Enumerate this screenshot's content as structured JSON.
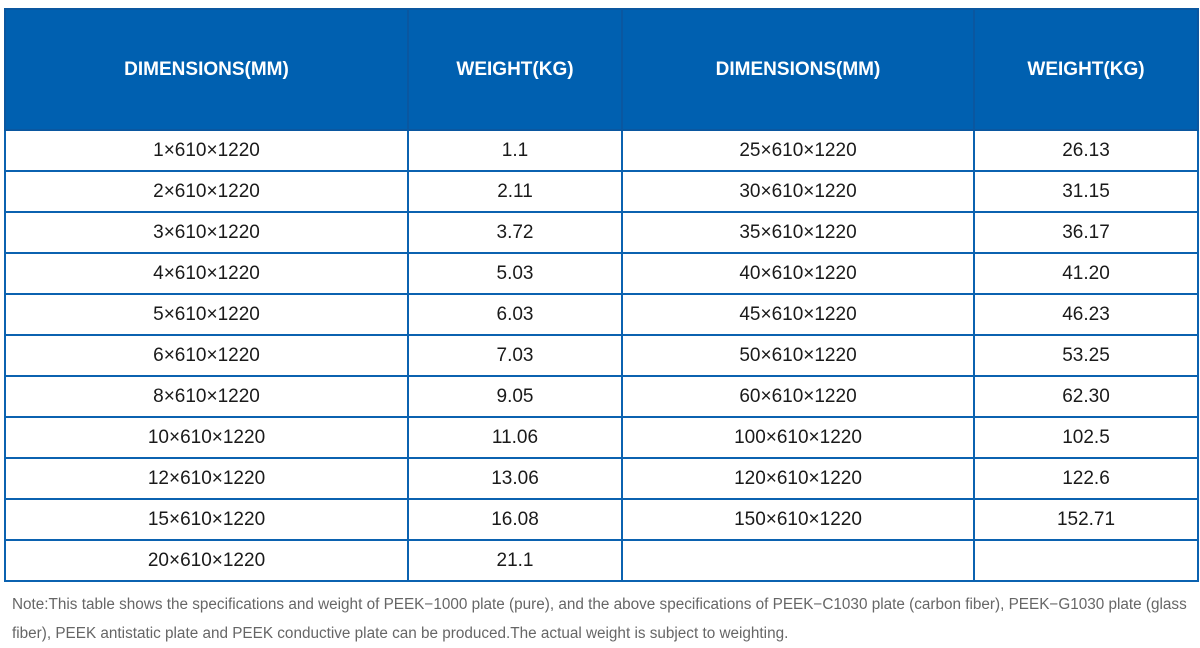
{
  "table": {
    "headers": [
      "DIMENSIONS(MM)",
      "WEIGHT(KG)",
      "DIMENSIONS(MM)",
      "WEIGHT(KG)"
    ],
    "rows": [
      [
        "1×610×1220",
        "1.1",
        "25×610×1220",
        "26.13"
      ],
      [
        "2×610×1220",
        "2.11",
        "30×610×1220",
        "31.15"
      ],
      [
        "3×610×1220",
        "3.72",
        "35×610×1220",
        "36.17"
      ],
      [
        "4×610×1220",
        "5.03",
        "40×610×1220",
        "41.20"
      ],
      [
        "5×610×1220",
        "6.03",
        "45×610×1220",
        "46.23"
      ],
      [
        "6×610×1220",
        "7.03",
        "50×610×1220",
        "53.25"
      ],
      [
        "8×610×1220",
        "9.05",
        "60×610×1220",
        "62.30"
      ],
      [
        "10×610×1220",
        "11.06",
        "100×610×1220",
        "102.5"
      ],
      [
        "12×610×1220",
        "13.06",
        "120×610×1220",
        "122.6"
      ],
      [
        "15×610×1220",
        "16.08",
        "150×610×1220",
        "152.71"
      ],
      [
        "20×610×1220",
        "21.1",
        "",
        ""
      ]
    ]
  },
  "note": "Note:This table shows the specifications and weight of PEEK−1000 plate (pure), and the above specifications of PEEK−C1030 plate (carbon fiber), PEEK−G1030 plate (glass fiber), PEEK antistatic plate and PEEK conductive plate can be produced.The actual weight is subject to weighting.",
  "colors": {
    "header_bg": "#0060b0",
    "border": "#0b62b0",
    "note": "#666666"
  }
}
